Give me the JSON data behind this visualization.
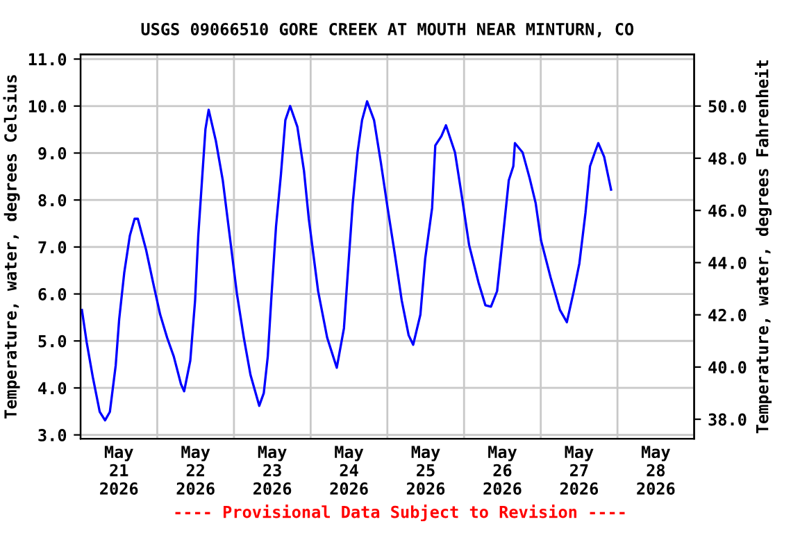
{
  "chart_data": {
    "type": "line",
    "title": "USGS 09066510 GORE CREEK AT MOUTH NEAR MINTURN, CO",
    "ylabel": "Temperature, water, degrees Celsius",
    "y2label": "Temperature, water, degrees Fahrenheit",
    "annotations": [
      "---- Provisional Data Subject to Revision ----"
    ],
    "x": [
      "2026-05-21T00:25",
      "2026-05-21T01:55",
      "2026-05-21T03:50",
      "2026-05-21T06:00",
      "2026-05-21T07:40",
      "2026-05-21T09:10",
      "2026-05-21T11:00",
      "2026-05-21T12:05",
      "2026-05-21T13:40",
      "2026-05-21T15:25",
      "2026-05-21T16:55",
      "2026-05-21T17:55",
      "2026-05-21T20:30",
      "2026-05-21T22:40",
      "2026-05-22T00:55",
      "2026-05-22T03:05",
      "2026-05-22T05:10",
      "2026-05-22T07:25",
      "2026-05-22T08:25",
      "2026-05-22T10:20",
      "2026-05-22T11:50",
      "2026-05-22T12:50",
      "2026-05-22T14:00",
      "2026-05-22T15:05",
      "2026-05-22T16:05",
      "2026-05-22T18:20",
      "2026-05-22T20:30",
      "2026-05-22T22:40",
      "2026-05-23T00:55",
      "2026-05-23T03:05",
      "2026-05-23T05:10",
      "2026-05-23T07:55",
      "2026-05-23T09:20",
      "2026-05-23T10:35",
      "2026-05-23T11:50",
      "2026-05-23T13:10",
      "2026-05-23T14:40",
      "2026-05-23T16:05",
      "2026-05-23T17:35",
      "2026-05-23T19:50",
      "2026-05-23T21:55",
      "2026-05-23T23:25",
      "2026-05-24T02:20",
      "2026-05-24T05:10",
      "2026-05-24T08:10",
      "2026-05-24T10:25",
      "2026-05-24T11:50",
      "2026-05-24T13:10",
      "2026-05-24T14:40",
      "2026-05-24T16:05",
      "2026-05-24T17:40",
      "2026-05-24T19:50",
      "2026-05-24T21:55",
      "2026-05-25T00:05",
      "2026-05-25T02:20",
      "2026-05-25T04:30",
      "2026-05-25T06:40",
      "2026-05-25T08:05",
      "2026-05-25T10:20",
      "2026-05-25T11:50",
      "2026-05-25T14:00",
      "2026-05-25T15:00",
      "2026-05-25T16:55",
      "2026-05-25T18:20",
      "2026-05-25T21:10",
      "2026-05-25T23:25",
      "2026-05-26T01:35",
      "2026-05-26T04:30",
      "2026-05-26T06:40",
      "2026-05-26T08:25",
      "2026-05-26T10:20",
      "2026-05-26T12:30",
      "2026-05-26T14:00",
      "2026-05-26T15:25",
      "2026-05-26T15:55",
      "2026-05-26T18:20",
      "2026-05-26T20:30",
      "2026-05-26T22:25",
      "2026-05-27T00:05",
      "2026-05-27T03:05",
      "2026-05-27T06:00",
      "2026-05-27T08:10",
      "2026-05-27T10:20",
      "2026-05-27T12:05",
      "2026-05-27T14:00",
      "2026-05-27T15:25",
      "2026-05-27T16:55",
      "2026-05-27T18:00",
      "2026-05-27T19:50",
      "2026-05-27T22:00"
    ],
    "series": [
      {
        "color": "#0000ff",
        "values": [
          5.66,
          4.97,
          4.23,
          3.49,
          3.31,
          3.49,
          4.48,
          5.46,
          6.45,
          7.24,
          7.6,
          7.6,
          6.94,
          6.25,
          5.56,
          5.07,
          4.67,
          4.08,
          3.93,
          4.58,
          5.86,
          7.24,
          8.42,
          9.51,
          9.92,
          9.26,
          8.42,
          7.24,
          6.01,
          5.07,
          4.28,
          3.62,
          3.89,
          4.67,
          6.06,
          7.44,
          8.52,
          9.7,
          10.0,
          9.56,
          8.62,
          7.6,
          6.06,
          5.07,
          4.43,
          5.27,
          6.65,
          7.93,
          9.01,
          9.7,
          10.1,
          9.7,
          8.82,
          7.83,
          6.85,
          5.86,
          5.12,
          4.92,
          5.56,
          6.75,
          7.83,
          9.16,
          9.36,
          9.59,
          9.01,
          8.03,
          7.04,
          6.25,
          5.76,
          5.73,
          6.06,
          7.44,
          8.42,
          8.72,
          9.21,
          9.01,
          8.47,
          7.93,
          7.14,
          6.35,
          5.66,
          5.4,
          6.06,
          6.65,
          7.73,
          8.72,
          9.01,
          9.21,
          8.92,
          8.22
        ]
      }
    ],
    "xlim": [
      "2026-05-21T00:00",
      "2026-05-29T00:00"
    ],
    "xticks": [
      {
        "value": "2026-05-21T00:00",
        "label": null
      },
      {
        "value": "2026-05-21T12:00",
        "label": "May\n21\n2026"
      },
      {
        "value": "2026-05-22T00:00",
        "label": null
      },
      {
        "value": "2026-05-22T12:00",
        "label": "May\n22\n2026"
      },
      {
        "value": "2026-05-23T00:00",
        "label": null
      },
      {
        "value": "2026-05-23T12:00",
        "label": "May\n23\n2026"
      },
      {
        "value": "2026-05-24T00:00",
        "label": null
      },
      {
        "value": "2026-05-24T12:00",
        "label": "May\n24\n2026"
      },
      {
        "value": "2026-05-25T00:00",
        "label": null
      },
      {
        "value": "2026-05-25T12:00",
        "label": "May\n25\n2026"
      },
      {
        "value": "2026-05-26T00:00",
        "label": null
      },
      {
        "value": "2026-05-26T12:00",
        "label": "May\n26\n2026"
      },
      {
        "value": "2026-05-27T00:00",
        "label": null
      },
      {
        "value": "2026-05-27T12:00",
        "label": "May\n27\n2026"
      },
      {
        "value": "2026-05-28T00:00",
        "label": null
      },
      {
        "value": "2026-05-28T12:00",
        "label": "May\n28\n2026"
      },
      {
        "value": "2026-05-29T00:00",
        "label": null
      }
    ],
    "ylim": [
      2.92,
      11.1
    ],
    "yticks": [
      {
        "value": 3,
        "label": "3.0"
      },
      {
        "value": 4,
        "label": "4.0"
      },
      {
        "value": 5,
        "label": "5.0"
      },
      {
        "value": 6,
        "label": "6.0"
      },
      {
        "value": 7,
        "label": "7.0"
      },
      {
        "value": 8,
        "label": "8.0"
      },
      {
        "value": 9,
        "label": "9.0"
      },
      {
        "value": 10,
        "label": "10.0"
      },
      {
        "value": 11,
        "label": "11.0"
      }
    ],
    "y2lim": [
      37.256,
      51.98
    ],
    "y2ticks": [
      {
        "value": 38,
        "label": "38.0"
      },
      {
        "value": 40,
        "label": "40.0"
      },
      {
        "value": 42,
        "label": "42.0"
      },
      {
        "value": 44,
        "label": "44.0"
      },
      {
        "value": 46,
        "label": "46.0"
      },
      {
        "value": 48,
        "label": "48.0"
      },
      {
        "value": 50,
        "label": "50.0"
      }
    ],
    "grid": true,
    "legend": false,
    "marker": "none",
    "line_style": "solid"
  }
}
